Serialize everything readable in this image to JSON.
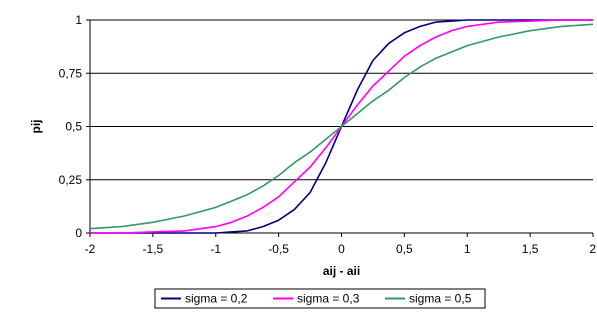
{
  "chart_data": {
    "type": "line",
    "xlabel": "aij - aii",
    "ylabel": "pij",
    "xlim": [
      -2,
      2
    ],
    "ylim": [
      0,
      1
    ],
    "x_ticks": [
      -2,
      -1.5,
      -1,
      -0.5,
      0,
      0.5,
      1,
      1.5,
      2
    ],
    "x_tick_labels": [
      "-2",
      "-1,5",
      "-1",
      "-0,5",
      "0",
      "0,5",
      "1",
      "1,5",
      "2"
    ],
    "y_ticks": [
      0,
      0.25,
      0.5,
      0.75,
      1
    ],
    "y_tick_labels": [
      "0",
      "0,25",
      "0,5",
      "0,75",
      "1"
    ],
    "grid": "horizontal",
    "legend": "bottom",
    "x": [
      -2,
      -1.75,
      -1.5,
      -1.25,
      -1,
      -0.875,
      -0.75,
      -0.625,
      -0.5,
      -0.375,
      -0.25,
      -0.125,
      0,
      0.125,
      0.25,
      0.375,
      0.5,
      0.625,
      0.75,
      0.875,
      1,
      1.25,
      1.5,
      1.75,
      2
    ],
    "series": [
      {
        "name": "sigma = 0,2",
        "color": "#000080",
        "values": [
          0.0,
          0.0,
          0.0,
          0.0,
          0.0,
          0.005,
          0.01,
          0.03,
          0.06,
          0.11,
          0.19,
          0.33,
          0.5,
          0.67,
          0.81,
          0.89,
          0.94,
          0.97,
          0.99,
          0.995,
          1.0,
          1.0,
          1.0,
          1.0,
          1.0
        ]
      },
      {
        "name": "sigma = 0,3",
        "color": "#ff00ff",
        "values": [
          0.0,
          0.0,
          0.005,
          0.01,
          0.03,
          0.05,
          0.08,
          0.12,
          0.17,
          0.24,
          0.31,
          0.4,
          0.5,
          0.6,
          0.69,
          0.76,
          0.83,
          0.88,
          0.92,
          0.95,
          0.97,
          0.99,
          0.995,
          1.0,
          1.0
        ]
      },
      {
        "name": "sigma = 0,5",
        "color": "#339966",
        "values": [
          0.02,
          0.03,
          0.05,
          0.08,
          0.12,
          0.15,
          0.18,
          0.22,
          0.27,
          0.33,
          0.38,
          0.44,
          0.5,
          0.56,
          0.62,
          0.67,
          0.73,
          0.78,
          0.82,
          0.85,
          0.88,
          0.92,
          0.95,
          0.97,
          0.98
        ]
      }
    ]
  }
}
